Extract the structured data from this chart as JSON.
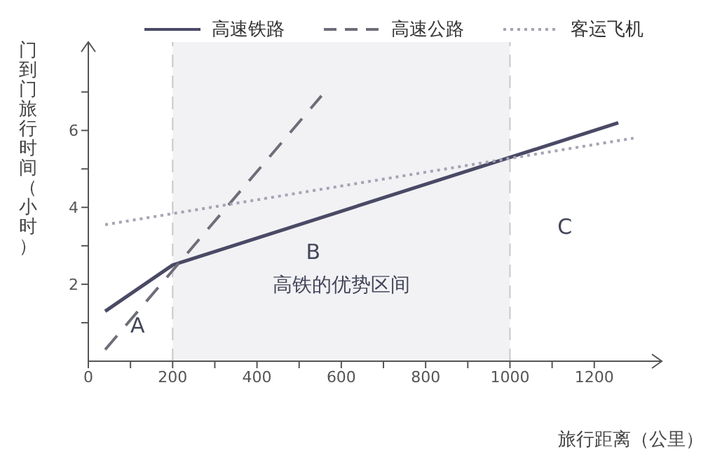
{
  "chart_data": {
    "type": "line",
    "xlabel": "旅行距离（公里）",
    "ylabel": "门到门旅行时间（小时）",
    "series": [
      {
        "name": "高速铁路",
        "color": "#4a4a66",
        "line_style": "solid",
        "x": [
          40,
          200,
          1257
        ],
        "values": [
          1.3,
          2.5,
          6.2
        ]
      },
      {
        "name": "高速公路",
        "color": "#6e6e7a",
        "line_style": "dashed",
        "x": [
          40,
          553
        ],
        "values": [
          0.3,
          6.9
        ]
      },
      {
        "name": "客运飞机",
        "color": "#a4a4b4",
        "line_style": "dotted",
        "x": [
          40,
          1293
        ],
        "values": [
          3.55,
          5.8
        ]
      }
    ],
    "xlim": [
      0,
      1360
    ],
    "ylim": [
      0,
      8.3
    ],
    "xticks": [
      0,
      {
        "value": 100,
        "label": null
      },
      200,
      {
        "value": 300,
        "label": null
      },
      400,
      {
        "value": 500,
        "label": null
      },
      600,
      {
        "value": 700,
        "label": null
      },
      800,
      {
        "value": 900,
        "label": null
      },
      1000,
      {
        "value": 1100,
        "label": null
      },
      1200
    ],
    "yticks": [
      {
        "value": 1,
        "label": null
      },
      2,
      {
        "value": 3,
        "label": null
      },
      4,
      {
        "value": 5,
        "label": null
      },
      6,
      {
        "value": 7,
        "label": null
      }
    ],
    "bands": [
      {
        "axis": "x",
        "from": 200,
        "to": 1000,
        "label": "高铁的优势区间",
        "color": "#f2f2f5"
      }
    ],
    "ref_lines": [
      {
        "axis": "x",
        "value": 200,
        "color": "#c8c8cc",
        "line_style": "dashed"
      },
      {
        "axis": "x",
        "value": 1000,
        "color": "#c8c8cc",
        "line_style": "dashed"
      }
    ],
    "annotations": [
      "A",
      "B",
      "C"
    ],
    "legend": "top",
    "grid": false,
    "marker": "none"
  }
}
